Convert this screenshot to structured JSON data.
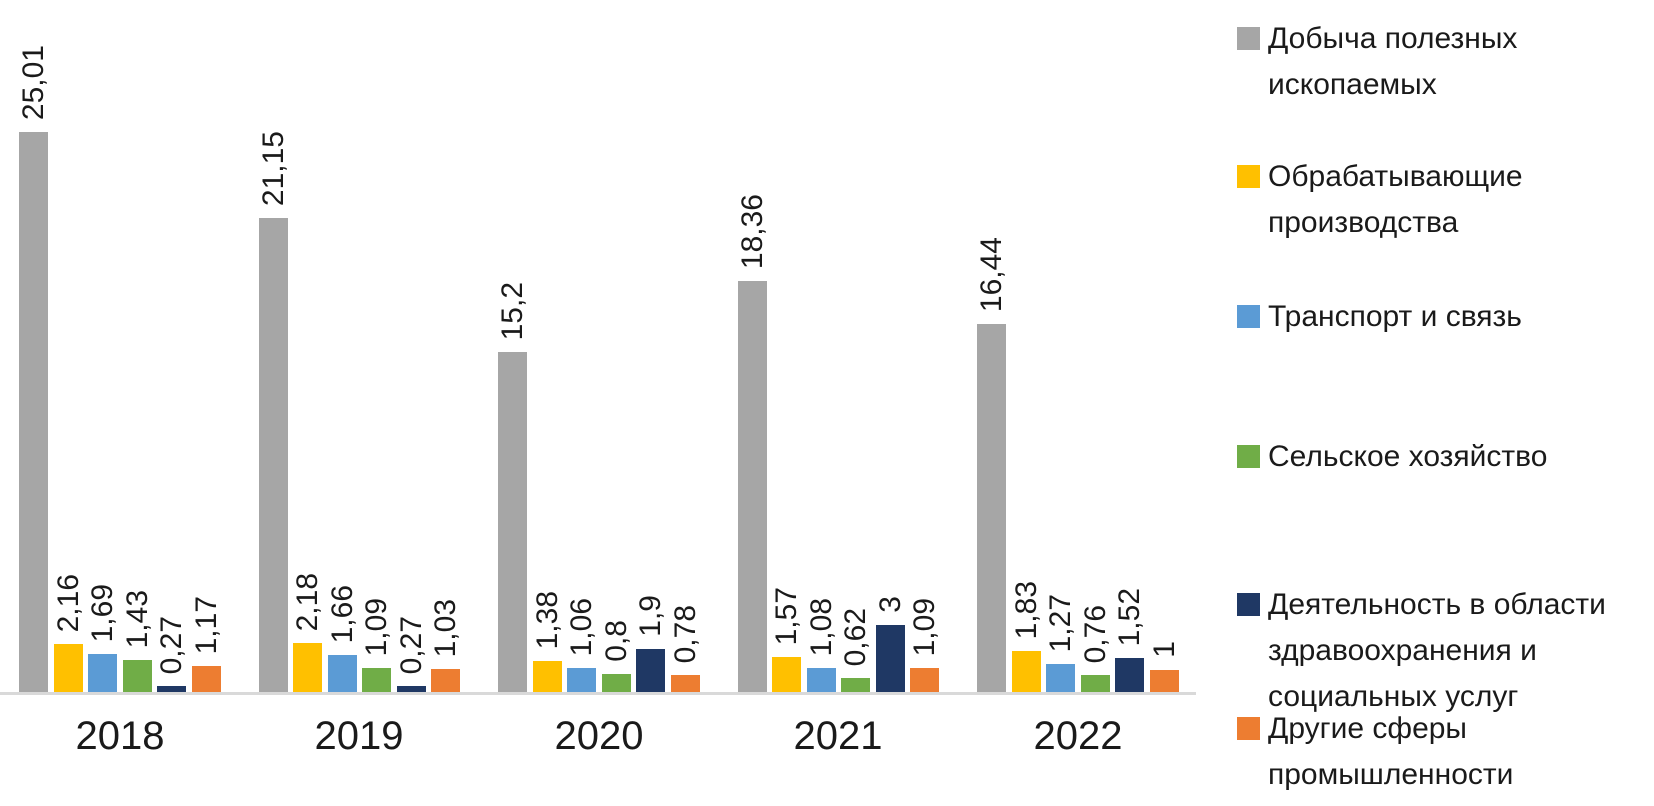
{
  "chart_data": {
    "type": "bar",
    "title": "",
    "xlabel": "",
    "ylabel": "",
    "categories": [
      "2018",
      "2019",
      "2020",
      "2021",
      "2022"
    ],
    "series": [
      {
        "name": "Добыча полезных ископаемых",
        "name_wrapped": "Добыча полезных\nископаемых",
        "color": "#a6a6a6",
        "values": [
          25.01,
          21.15,
          15.2,
          18.36,
          16.44
        ],
        "labels": [
          "25,01",
          "21,15",
          "15,2",
          "18,36",
          "16,44"
        ]
      },
      {
        "name": "Обрабатывающие производства",
        "name_wrapped": "Обрабатывающие\nпроизводства",
        "color": "#ffc000",
        "values": [
          2.16,
          2.18,
          1.38,
          1.57,
          1.83
        ],
        "labels": [
          "2,16",
          "2,18",
          "1,38",
          "1,57",
          "1,83"
        ]
      },
      {
        "name": "Транспорт и связь",
        "name_wrapped": "Транспорт и связь",
        "color": "#5b9bd5",
        "values": [
          1.69,
          1.66,
          1.06,
          1.08,
          1.27
        ],
        "labels": [
          "1,69",
          "1,66",
          "1,06",
          "1,08",
          "1,27"
        ]
      },
      {
        "name": "Сельское хозяйство",
        "name_wrapped": "Сельское хозяйство",
        "color": "#70ad47",
        "values": [
          1.43,
          1.09,
          0.8,
          0.62,
          0.76
        ],
        "labels": [
          "1,43",
          "1,09",
          "0,8",
          "0,62",
          "0,76"
        ]
      },
      {
        "name": "Деятельность в области здравоохранения и социальных услуг",
        "name_wrapped": "Деятельность в области\nздравоохранения и\nсоциальных услуг",
        "color": "#1f3864",
        "values": [
          0.27,
          0.27,
          1.9,
          3,
          1.52
        ],
        "labels": [
          "0,27",
          "0,27",
          "1,9",
          "3",
          "1,52"
        ]
      },
      {
        "name": "Другие сферы промышленности",
        "name_wrapped": "Другие сферы\nпромышленности",
        "color": "#ed7d31",
        "values": [
          1.17,
          1.03,
          0.78,
          1.09,
          1
        ],
        "labels": [
          "1,17",
          "1,03",
          "0,78",
          "1,09",
          "1"
        ]
      }
    ],
    "ylim": [
      0,
      26
    ],
    "grid": false,
    "legend_position": "right",
    "decimal_separator": ",",
    "axis_line_color": "#d9d9d9",
    "label_color": "#1a1a1a"
  }
}
